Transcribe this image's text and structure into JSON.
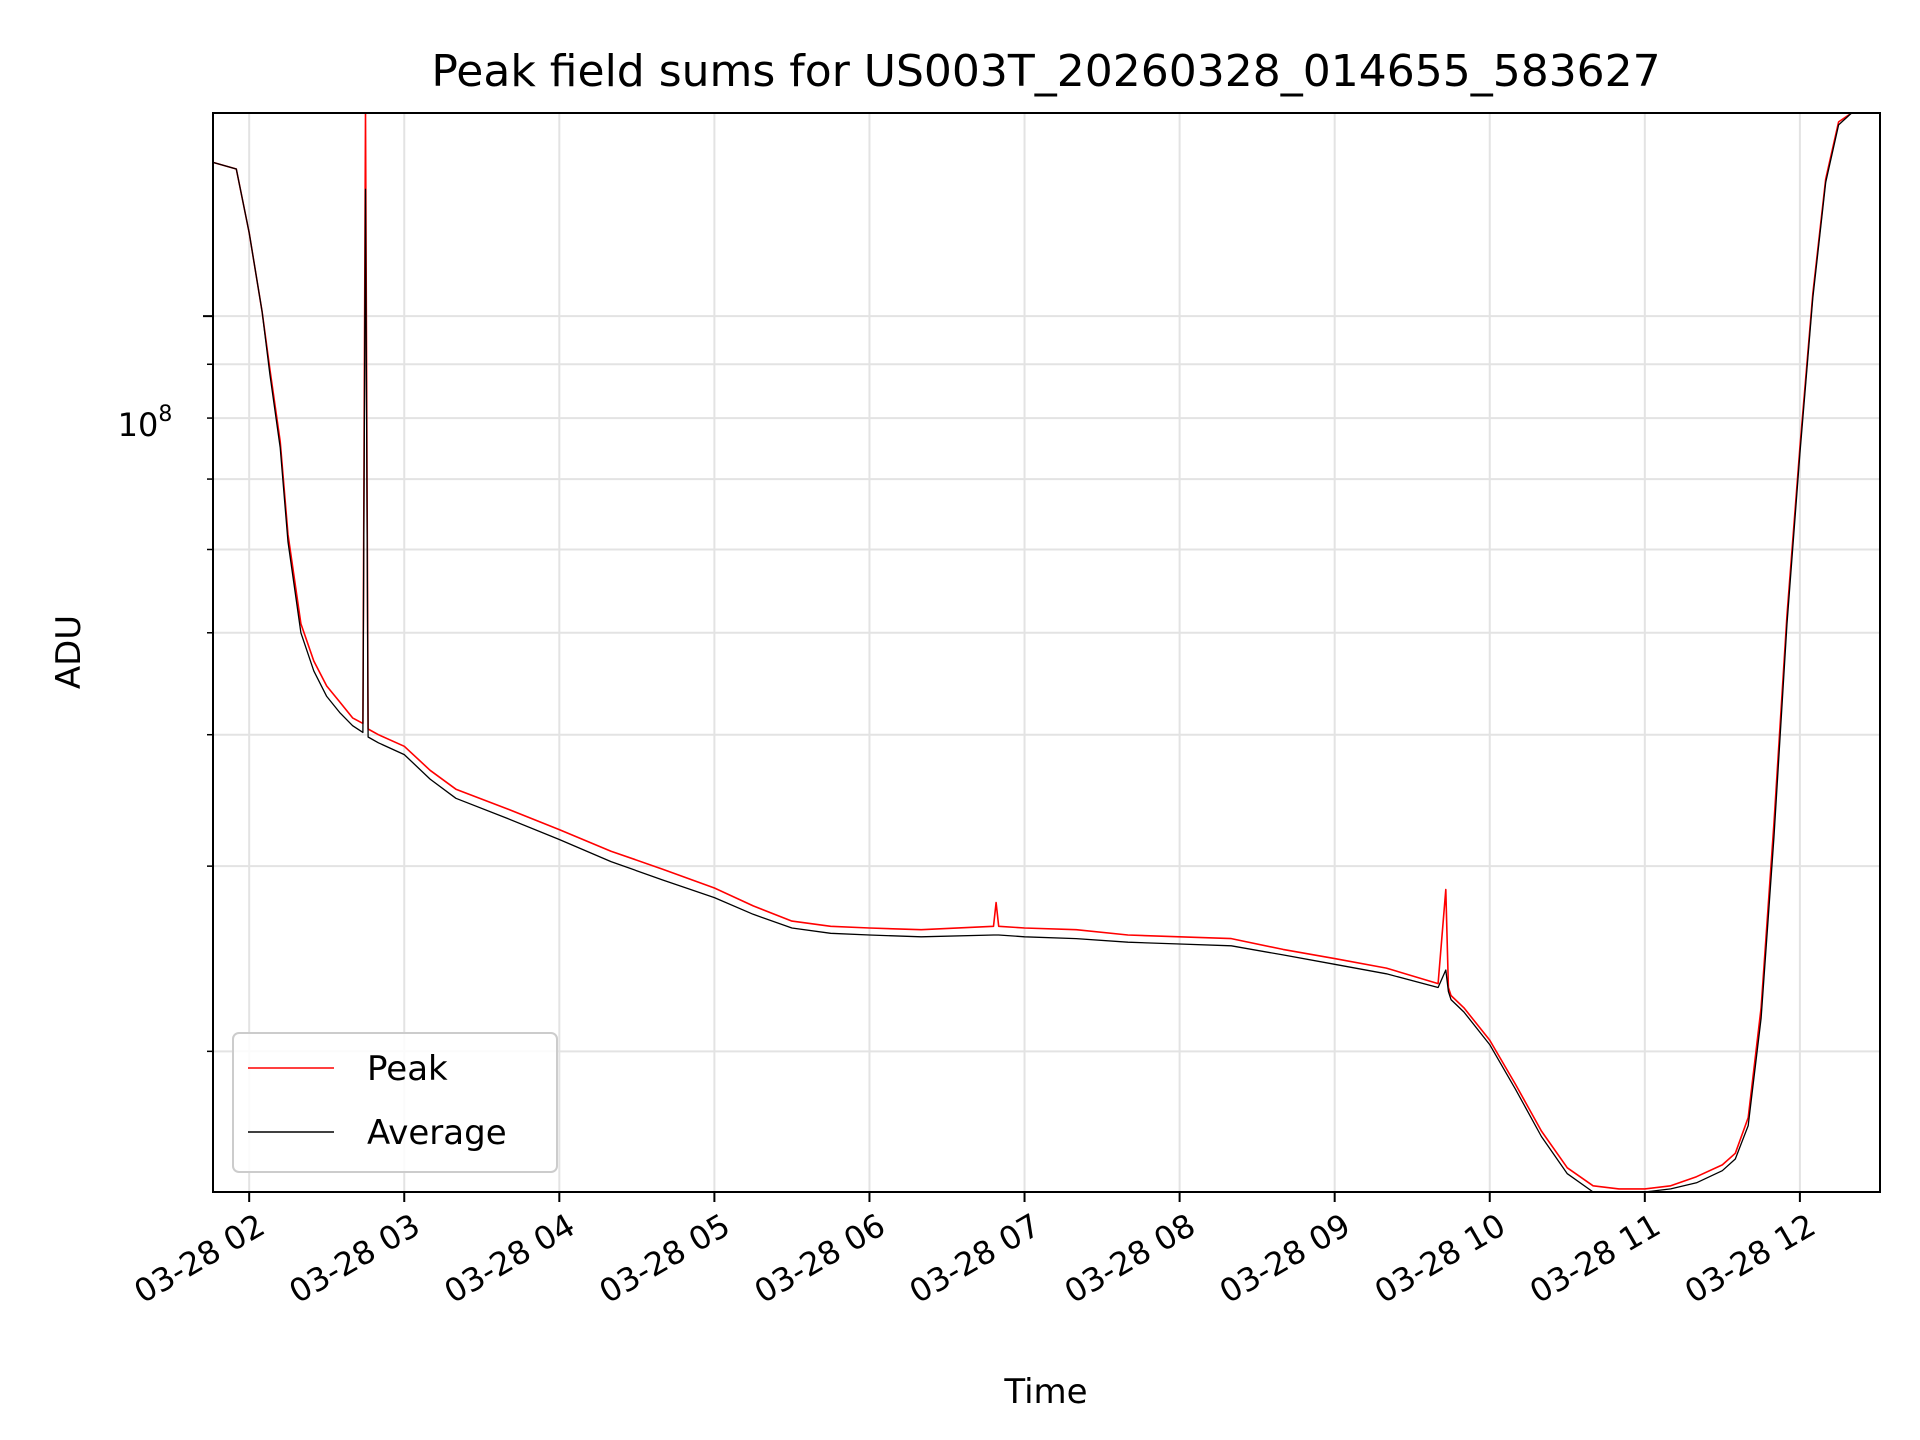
{
  "chart_data": {
    "type": "line",
    "title": "Peak field sums for US003T_20260328_014655_583627",
    "xlabel": "Time",
    "ylabel": "ADU",
    "y_scale": "log",
    "y_major_tick_label": "10",
    "y_major_tick_exp": "8",
    "y_major_tick_value": 100000000,
    "ylim": [
      14700000,
      156000000
    ],
    "xlim": [
      "2026-03-28 01:46",
      "2026-03-28 12:31"
    ],
    "x_tick_values": [
      "2026-03-28 02:00",
      "2026-03-28 03:00",
      "2026-03-28 04:00",
      "2026-03-28 05:00",
      "2026-03-28 06:00",
      "2026-03-28 07:00",
      "2026-03-28 08:00",
      "2026-03-28 09:00",
      "2026-03-28 10:00",
      "2026-03-28 11:00",
      "2026-03-28 12:00"
    ],
    "x_tick_labels": [
      "03-28 02",
      "03-28 03",
      "03-28 04",
      "03-28 05",
      "03-28 06",
      "03-28 07",
      "03-28 08",
      "03-28 09",
      "03-28 10",
      "03-28 11",
      "03-28 12"
    ],
    "grid": true,
    "legend_position": "lower-left",
    "series": [
      {
        "name": "Peak",
        "color": "#ff0000",
        "x": [
          "2026-03-28 01:46",
          "2026-03-28 01:55",
          "2026-03-28 02:00",
          "2026-03-28 02:05",
          "2026-03-28 02:08",
          "2026-03-28 02:12",
          "2026-03-28 02:15",
          "2026-03-28 02:20",
          "2026-03-28 02:25",
          "2026-03-28 02:30",
          "2026-03-28 02:35",
          "2026-03-28 02:40",
          "2026-03-28 02:44",
          "2026-03-28 02:45",
          "2026-03-28 02:46",
          "2026-03-28 02:50",
          "2026-03-28 03:00",
          "2026-03-28 03:10",
          "2026-03-28 03:20",
          "2026-03-28 03:40",
          "2026-03-28 04:00",
          "2026-03-28 04:20",
          "2026-03-28 04:40",
          "2026-03-28 05:00",
          "2026-03-28 05:15",
          "2026-03-28 05:30",
          "2026-03-28 05:45",
          "2026-03-28 06:00",
          "2026-03-28 06:20",
          "2026-03-28 06:48",
          "2026-03-28 06:49",
          "2026-03-28 06:50",
          "2026-03-28 07:00",
          "2026-03-28 07:20",
          "2026-03-28 07:40",
          "2026-03-28 08:00",
          "2026-03-28 08:20",
          "2026-03-28 08:40",
          "2026-03-28 09:00",
          "2026-03-28 09:20",
          "2026-03-28 09:40",
          "2026-03-28 09:43",
          "2026-03-28 09:44",
          "2026-03-28 09:45",
          "2026-03-28 09:50",
          "2026-03-28 10:00",
          "2026-03-28 10:10",
          "2026-03-28 10:20",
          "2026-03-28 10:30",
          "2026-03-28 10:40",
          "2026-03-28 10:50",
          "2026-03-28 11:00",
          "2026-03-28 11:10",
          "2026-03-28 11:20",
          "2026-03-28 11:30",
          "2026-03-28 11:35",
          "2026-03-28 11:40",
          "2026-03-28 11:45",
          "2026-03-28 11:50",
          "2026-03-28 11:55",
          "2026-03-28 12:00",
          "2026-03-28 12:05",
          "2026-03-28 12:10",
          "2026-03-28 12:15",
          "2026-03-28 12:20",
          "2026-03-28 12:25",
          "2026-03-28 12:31"
        ],
        "values": [
          140000000,
          138000000,
          120000000,
          101000000,
          89000000,
          76000000,
          62000000,
          51000000,
          47000000,
          44500000,
          43000000,
          41500000,
          41000000,
          156000000,
          40500000,
          40000000,
          39000000,
          37000000,
          35500000,
          34000000,
          32500000,
          31000000,
          29800000,
          28600000,
          27500000,
          26600000,
          26300000,
          26200000,
          26100000,
          26300000,
          27700000,
          26300000,
          26200000,
          26100000,
          25800000,
          25700000,
          25600000,
          25000000,
          24500000,
          24000000,
          23200000,
          28500000,
          23000000,
          22600000,
          22000000,
          20500000,
          18600000,
          16800000,
          15500000,
          14900000,
          14800000,
          14800000,
          14900000,
          15200000,
          15600000,
          16000000,
          17300000,
          22000000,
          33000000,
          52000000,
          75000000,
          105000000,
          135000000,
          153000000,
          156000000,
          156000000,
          156000000
        ]
      },
      {
        "name": "Average",
        "color": "#000000",
        "x": [
          "2026-03-28 01:46",
          "2026-03-28 01:55",
          "2026-03-28 02:00",
          "2026-03-28 02:05",
          "2026-03-28 02:08",
          "2026-03-28 02:12",
          "2026-03-28 02:15",
          "2026-03-28 02:20",
          "2026-03-28 02:25",
          "2026-03-28 02:30",
          "2026-03-28 02:35",
          "2026-03-28 02:40",
          "2026-03-28 02:44",
          "2026-03-28 02:45",
          "2026-03-28 02:46",
          "2026-03-28 02:50",
          "2026-03-28 03:00",
          "2026-03-28 03:10",
          "2026-03-28 03:20",
          "2026-03-28 03:40",
          "2026-03-28 04:00",
          "2026-03-28 04:20",
          "2026-03-28 04:40",
          "2026-03-28 05:00",
          "2026-03-28 05:15",
          "2026-03-28 05:30",
          "2026-03-28 05:45",
          "2026-03-28 06:00",
          "2026-03-28 06:20",
          "2026-03-28 06:48",
          "2026-03-28 06:49",
          "2026-03-28 06:50",
          "2026-03-28 07:00",
          "2026-03-28 07:20",
          "2026-03-28 07:40",
          "2026-03-28 08:00",
          "2026-03-28 08:20",
          "2026-03-28 08:40",
          "2026-03-28 09:00",
          "2026-03-28 09:20",
          "2026-03-28 09:40",
          "2026-03-28 09:43",
          "2026-03-28 09:44",
          "2026-03-28 09:45",
          "2026-03-28 09:50",
          "2026-03-28 10:00",
          "2026-03-28 10:10",
          "2026-03-28 10:20",
          "2026-03-28 10:30",
          "2026-03-28 10:40",
          "2026-03-28 10:50",
          "2026-03-28 11:00",
          "2026-03-28 11:10",
          "2026-03-28 11:20",
          "2026-03-28 11:30",
          "2026-03-28 11:35",
          "2026-03-28 11:40",
          "2026-03-28 11:45",
          "2026-03-28 11:50",
          "2026-03-28 11:55",
          "2026-03-28 12:00",
          "2026-03-28 12:05",
          "2026-03-28 12:10",
          "2026-03-28 12:15",
          "2026-03-28 12:20",
          "2026-03-28 12:25",
          "2026-03-28 12:31"
        ],
        "values": [
          140000000,
          138000000,
          120000000,
          101000000,
          88000000,
          75000000,
          61000000,
          50000000,
          46000000,
          43500000,
          42000000,
          40800000,
          40200000,
          132000000,
          39800000,
          39300000,
          38300000,
          36300000,
          34800000,
          33300000,
          31800000,
          30300000,
          29100000,
          28000000,
          27000000,
          26200000,
          25900000,
          25800000,
          25700000,
          25800000,
          25800000,
          25800000,
          25700000,
          25600000,
          25400000,
          25300000,
          25200000,
          24700000,
          24200000,
          23700000,
          23000000,
          23900000,
          22800000,
          22400000,
          21800000,
          20300000,
          18400000,
          16600000,
          15300000,
          14700000,
          14700000,
          14700000,
          14800000,
          15000000,
          15400000,
          15800000,
          17000000,
          21500000,
          32000000,
          51000000,
          74000000,
          104000000,
          134000000,
          152000000,
          156000000,
          156000000,
          156000000
        ]
      }
    ]
  }
}
